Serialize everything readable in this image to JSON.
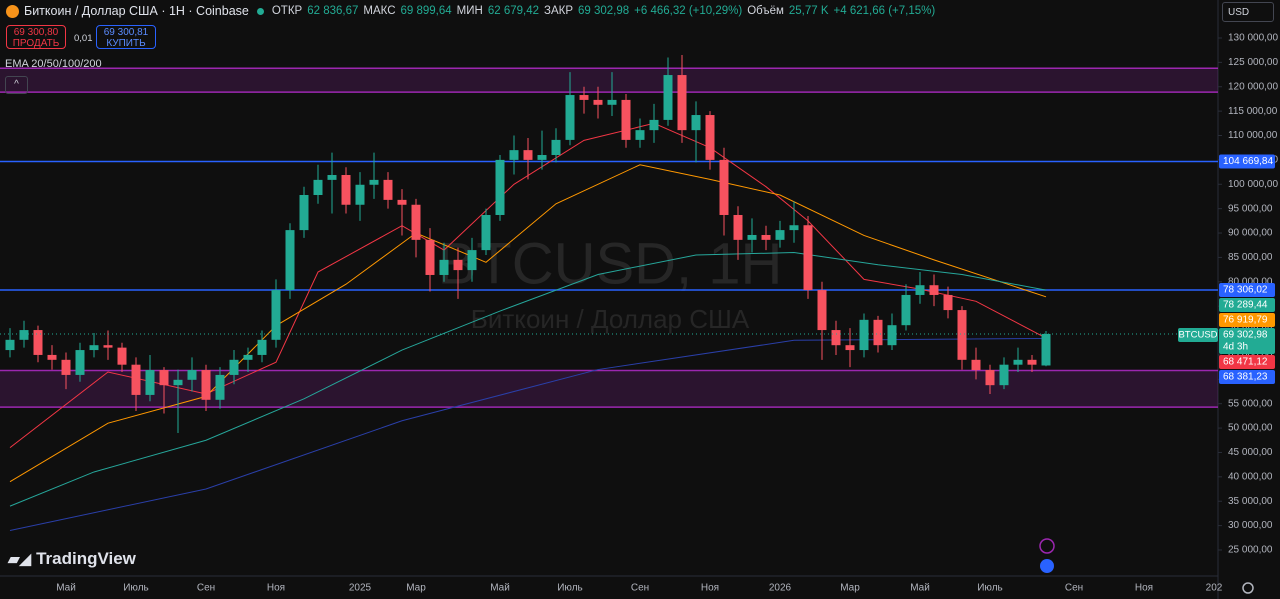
{
  "header": {
    "symbol": "Биткоин / Доллар США · 1Н · Coinbase",
    "ohlc": [
      {
        "label": "ОТКР",
        "value": "62 836,67"
      },
      {
        "label": "МАКС",
        "value": "69 899,64"
      },
      {
        "label": "МИН",
        "value": "62 679,42"
      },
      {
        "label": "ЗАКР",
        "value": "69 302,98"
      }
    ],
    "change": "+6 466,32 (+10,29%)",
    "volume_label": "Объём",
    "volume": "25,77 K",
    "volume_change": "+4 621,66 (+7,15%)"
  },
  "trade": {
    "sell_price": "69 300,80",
    "sell": "ПРОДАТЬ",
    "spread": "0,01",
    "buy_price": "69 300,81",
    "buy": "КУПИТЬ"
  },
  "indicator": "EMA 20/50/100/200",
  "currency": "USD",
  "brand": "TradingView",
  "watermark": {
    "symbol": "BTCUSD, 1H",
    "description": "Биткоин / Доллар США"
  },
  "chart_data": {
    "type": "candlestick",
    "categories": [
      null,
      null,
      null,
      null,
      "Май",
      null,
      null,
      null,
      null,
      "Июль",
      null,
      null,
      null,
      null,
      "Сен",
      null,
      null,
      null,
      null,
      "Ноя",
      null,
      null,
      null,
      null,
      null,
      "2025",
      null,
      null,
      null,
      "Мар",
      null,
      null,
      null,
      null,
      null,
      "Май",
      null,
      null,
      null,
      null,
      "Июль",
      null,
      null,
      null,
      null,
      "Сен",
      null,
      null,
      null,
      null,
      "Ноя",
      null,
      null,
      null,
      null,
      "2026",
      null,
      null,
      null,
      null,
      "Мар",
      null,
      null,
      null,
      null,
      "Май",
      null,
      null,
      null,
      null,
      "Июль",
      null,
      null,
      null,
      null,
      null,
      "Сен",
      null,
      null,
      null,
      null,
      "Ноя",
      null,
      null,
      null,
      null,
      "202"
    ],
    "open": [
      66000,
      68100,
      70100,
      65000,
      64000,
      60900,
      66000,
      67000,
      66500,
      63000,
      56800,
      61900,
      58800,
      59900,
      61900,
      55800,
      60900,
      64000,
      65000,
      68100,
      78300,
      90600,
      97800,
      100900,
      101900,
      95800,
      99900,
      100900,
      96800,
      95800,
      88600,
      81400,
      84500,
      82400,
      86500,
      93700,
      105000,
      107000,
      105000,
      106000,
      109100,
      118300,
      117300,
      116300,
      117300,
      109100,
      111100,
      113200,
      122400,
      111100,
      114200,
      105000,
      93700,
      88600,
      89600,
      88600,
      90600,
      91600,
      78300,
      70100,
      67000,
      66000,
      72200,
      67000,
      71100,
      77300,
      79300,
      77300,
      74200,
      64000,
      61900,
      58800,
      63000,
      64000,
      62836.67,
      null,
      null,
      null,
      null,
      null,
      null,
      null,
      null,
      null,
      null,
      null,
      null
    ],
    "high": [
      70500,
      72000,
      71000,
      67000,
      65500,
      67500,
      69500,
      70000,
      67500,
      64500,
      65000,
      62500,
      62000,
      64500,
      63000,
      62500,
      66000,
      66500,
      70000,
      80500,
      92000,
      99500,
      104000,
      106500,
      103500,
      102500,
      106500,
      102500,
      99000,
      97000,
      91000,
      88000,
      87000,
      89000,
      95000,
      106000,
      110000,
      109500,
      111000,
      111500,
      123000,
      120000,
      120000,
      123000,
      118500,
      113500,
      116500,
      126000,
      126500,
      117000,
      115000,
      107500,
      95500,
      93000,
      91500,
      92500,
      96500,
      93500,
      80000,
      72000,
      70500,
      73500,
      73000,
      73500,
      79500,
      82000,
      81500,
      79000,
      75000,
      66500,
      63000,
      64500,
      66500,
      65000,
      69899.64,
      null,
      null,
      null,
      null,
      null,
      null,
      null,
      null,
      null,
      null,
      null,
      null
    ],
    "low": [
      64500,
      66500,
      63500,
      62000,
      58000,
      59500,
      64500,
      64000,
      61500,
      53500,
      55500,
      53000,
      49000,
      57500,
      53500,
      54000,
      59000,
      61500,
      63500,
      66500,
      76500,
      89000,
      96000,
      94000,
      94000,
      92500,
      97000,
      95000,
      89500,
      85000,
      78000,
      80000,
      76500,
      80000,
      85500,
      92500,
      102000,
      101000,
      103000,
      104500,
      108000,
      114500,
      113500,
      114000,
      107500,
      107500,
      108500,
      112000,
      108500,
      104500,
      103000,
      89500,
      84500,
      86000,
      86500,
      87000,
      88000,
      76500,
      64000,
      65000,
      62500,
      64500,
      65500,
      66000,
      70000,
      75500,
      75000,
      72500,
      62000,
      60000,
      57000,
      58000,
      61500,
      61500,
      62679.42,
      null,
      null,
      null,
      null,
      null,
      null,
      null,
      null,
      null,
      null,
      null,
      null
    ],
    "close": [
      68100,
      70100,
      65000,
      64000,
      60900,
      66000,
      67000,
      66500,
      63000,
      56800,
      61900,
      58800,
      59900,
      61900,
      55800,
      60900,
      64000,
      65000,
      68100,
      78300,
      90600,
      97800,
      100900,
      101900,
      95800,
      99900,
      100900,
      96800,
      95800,
      88600,
      81400,
      84500,
      82400,
      86500,
      93700,
      105000,
      107000,
      105000,
      106000,
      109100,
      118300,
      117300,
      116300,
      117300,
      109100,
      111100,
      113200,
      122400,
      111100,
      114200,
      105000,
      93700,
      88600,
      89600,
      88600,
      90600,
      91600,
      78300,
      70100,
      67000,
      66000,
      72200,
      67000,
      71100,
      77300,
      79300,
      77300,
      74200,
      64000,
      61900,
      58800,
      63000,
      64000,
      63000,
      69302.98,
      null,
      null,
      null,
      null,
      null,
      null,
      null,
      null,
      null,
      null,
      null,
      null
    ],
    "up_color": "#22ab94",
    "down_color": "#f7525f",
    "ylim": [
      19870,
      137790
    ],
    "yticks": [
      {
        "value": 25000,
        "label": "25 000,00"
      },
      {
        "value": 30000,
        "label": "30 000,00"
      },
      {
        "value": 35000,
        "label": "35 000,00"
      },
      {
        "value": 40000,
        "label": "40 000,00"
      },
      {
        "value": 45000,
        "label": "45 000,00"
      },
      {
        "value": 50000,
        "label": "50 000,00"
      },
      {
        "value": 55000,
        "label": "55 000,00"
      },
      {
        "value": 60000,
        "label": "60 000,00"
      },
      {
        "value": 65000,
        "label": "65 000,00"
      },
      {
        "value": 70000,
        "label": "70 000,00"
      },
      {
        "value": 75000,
        "label": "75 000,00"
      },
      {
        "value": 80000,
        "label": "80 000,00"
      },
      {
        "value": 85000,
        "label": "85 000,00"
      },
      {
        "value": 90000,
        "label": "90 000,00"
      },
      {
        "value": 95000,
        "label": "95 000,00"
      },
      {
        "value": 100000,
        "label": "100 000,00"
      },
      {
        "value": 105000,
        "label": "105 000,00"
      },
      {
        "value": 110000,
        "label": "110 000,00"
      },
      {
        "value": 115000,
        "label": "115 000,00"
      },
      {
        "value": 120000,
        "label": "120 000,00"
      },
      {
        "value": 125000,
        "label": "125 000,00"
      },
      {
        "value": 130000,
        "label": "130 000,00"
      }
    ],
    "grid": false,
    "ema": [
      {
        "color": "#f23645",
        "x": [
          0,
          7,
          14,
          19,
          22,
          28,
          31,
          36,
          41,
          46,
          50,
          54,
          57,
          61,
          65,
          69,
          74
        ],
        "values": [
          46000,
          61500,
          57000,
          63500,
          82000,
          91500,
          86500,
          100000,
          109000,
          112500,
          107500,
          99500,
          92500,
          80500,
          78500,
          76000,
          68471.12
        ]
      },
      {
        "color": "#ff9800",
        "x": [
          0,
          7,
          14,
          19,
          24,
          29,
          34,
          39,
          45,
          50,
          55,
          61,
          66,
          74
        ],
        "values": [
          39000,
          51000,
          56500,
          71000,
          79500,
          90000,
          84000,
          96000,
          104000,
          101000,
          97800,
          89500,
          84500,
          76919.79
        ]
      },
      {
        "color": "#26a69a",
        "x": [
          0,
          6,
          14,
          21,
          28,
          35,
          42,
          49,
          56,
          62,
          68,
          74
        ],
        "values": [
          34000,
          41000,
          47500,
          56000,
          66000,
          74000,
          81500,
          85500,
          86000,
          83500,
          81500,
          78289.44
        ]
      },
      {
        "color": "#2a3fa8",
        "x": [
          0,
          14,
          28,
          42,
          56,
          74
        ],
        "values": [
          29000,
          37500,
          51500,
          62000,
          68000,
          68381.23
        ]
      }
    ],
    "horizontal_lines": [
      {
        "value": 104669.84,
        "color": "#2962ff"
      },
      {
        "value": 78306.02,
        "color": "#2962ff"
      }
    ],
    "zones": [
      {
        "from": 118900,
        "to": 123800,
        "color": "#9c27b0"
      },
      {
        "from": 54300,
        "to": 61800,
        "color": "#9c27b0"
      }
    ],
    "price_labels": [
      {
        "value": 104669.84,
        "label": "104 669,84",
        "color": "#2962ff"
      },
      {
        "value": 78306.02,
        "label": "78 306,02",
        "color": "#2962ff"
      },
      {
        "value": 78289.44,
        "label": "78 289,44",
        "color": "#22ab94"
      },
      {
        "value": 76919.79,
        "label": "76 919,79",
        "color": "#ff9800"
      },
      {
        "value": 68471.12,
        "label": "68 471,12",
        "color": "#f23645"
      },
      {
        "value": 68381.23,
        "label": "68 381,23",
        "color": "#2962ff"
      }
    ],
    "last_price": {
      "name": "BTCUSD",
      "value": 69302.98,
      "label": "69 302,98",
      "countdown": "4d 3h",
      "color": "#22ab94"
    }
  }
}
